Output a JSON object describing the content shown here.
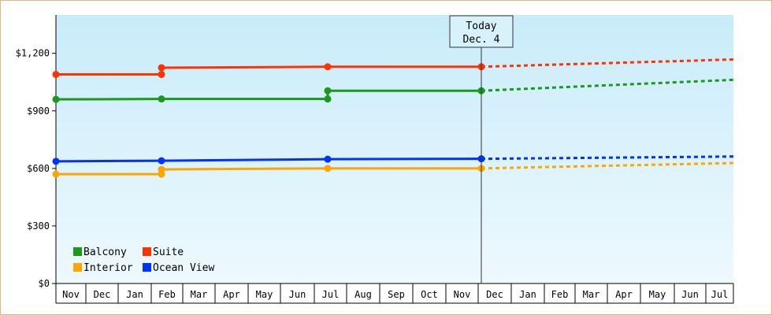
{
  "chart_data": {
    "type": "line",
    "title": "",
    "xlabel": "",
    "ylabel": "",
    "ylim": [
      0,
      1400
    ],
    "y_ticks": [
      0,
      300,
      600,
      900,
      1200
    ],
    "y_tick_labels": [
      "$0",
      "$300",
      "$600",
      "$900",
      "$1,200"
    ],
    "x_range": [
      "Nov (start)",
      "Jul (end)"
    ],
    "months": [
      "Nov",
      "Dec",
      "Jan",
      "Feb",
      "Mar",
      "Apr",
      "May",
      "Jun",
      "Jul",
      "Aug",
      "Sep",
      "Oct",
      "Nov",
      "Dec",
      "Jan",
      "Feb",
      "Mar",
      "Apr",
      "May",
      "Jun",
      "Jul"
    ],
    "today_marker": {
      "line1": "Today",
      "line2": "Dec. 4"
    },
    "grid": false,
    "legend_position": "bottom-left",
    "series": [
      {
        "name": "Balcony",
        "color": "#1a9a1a",
        "step_points": [
          {
            "x": "Nov",
            "y": 960
          },
          {
            "x": "Feb",
            "y": 962
          },
          {
            "x": "Jul",
            "y": 962
          },
          {
            "x": "Jul",
            "y": 1005
          },
          {
            "x": "Dec (today)",
            "y": 1005
          }
        ],
        "markers": [
          [
            "Nov",
            960
          ],
          [
            "Feb",
            962
          ],
          [
            "Jul",
            962
          ],
          [
            "Jul",
            1005
          ],
          [
            "Dec (today)",
            1005
          ]
        ],
        "forecast": [
          [
            "Dec (today)",
            1005
          ],
          [
            "Jul (end)",
            1062
          ]
        ]
      },
      {
        "name": "Suite",
        "color": "#ff3300",
        "step_points": [
          {
            "x": "Nov",
            "y": 1090
          },
          {
            "x": "Feb",
            "y": 1090
          },
          {
            "x": "Feb",
            "y": 1125
          },
          {
            "x": "Jul",
            "y": 1130
          },
          {
            "x": "Dec (today)",
            "y": 1130
          }
        ],
        "markers": [
          [
            "Nov",
            1090
          ],
          [
            "Feb",
            1090
          ],
          [
            "Feb",
            1125
          ],
          [
            "Jul",
            1130
          ],
          [
            "Dec (today)",
            1130
          ]
        ],
        "forecast": [
          [
            "Dec (today)",
            1130
          ],
          [
            "Jul (end)",
            1168
          ]
        ]
      },
      {
        "name": "Interior",
        "color": "#ffa500",
        "step_points": [
          {
            "x": "Nov",
            "y": 570
          },
          {
            "x": "Feb",
            "y": 570
          },
          {
            "x": "Feb",
            "y": 595
          },
          {
            "x": "Jul",
            "y": 600
          },
          {
            "x": "Dec (today)",
            "y": 600
          }
        ],
        "markers": [
          [
            "Nov",
            570
          ],
          [
            "Feb",
            570
          ],
          [
            "Feb",
            595
          ],
          [
            "Jul",
            600
          ],
          [
            "Dec (today)",
            600
          ]
        ],
        "forecast": [
          [
            "Dec (today)",
            600
          ],
          [
            "Jul (end)",
            628
          ]
        ]
      },
      {
        "name": "Ocean View",
        "color": "#0033ff",
        "step_points": [
          {
            "x": "Nov",
            "y": 637
          },
          {
            "x": "Feb",
            "y": 640
          },
          {
            "x": "Jul",
            "y": 648
          },
          {
            "x": "Dec (today)",
            "y": 650
          }
        ],
        "markers": [
          [
            "Nov",
            637
          ],
          [
            "Feb",
            640
          ],
          [
            "Jul",
            648
          ],
          [
            "Dec (today)",
            650
          ]
        ],
        "forecast": [
          [
            "Dec (today)",
            650
          ],
          [
            "Jul (end)",
            662
          ]
        ]
      }
    ],
    "legend": [
      {
        "label": "Balcony",
        "color": "#1a9a1a"
      },
      {
        "label": "Suite",
        "color": "#ff3300"
      },
      {
        "label": "Interior",
        "color": "#ffa500"
      },
      {
        "label": "Ocean View",
        "color": "#0033ff"
      }
    ]
  }
}
